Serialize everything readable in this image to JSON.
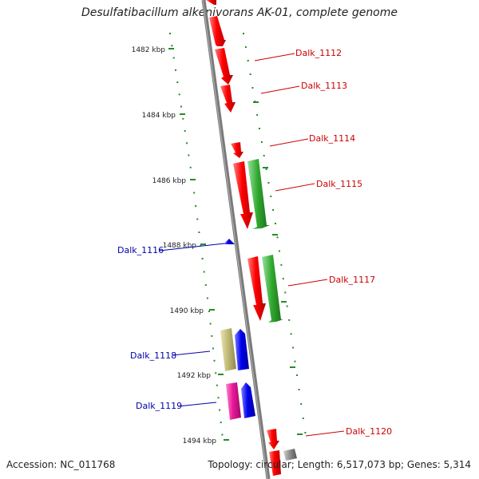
{
  "title": "Desulfatibacillum alkenivorans AK-01, complete genome",
  "footer": {
    "accession": "Accession: NC_011768",
    "summary": "Topology: circular; Length: 6,517,073 bp; Genes: 5,314"
  },
  "kbp_labels": [
    "1482 kbp",
    "1484 kbp",
    "1486 kbp",
    "1488 kbp",
    "1490 kbp",
    "1492 kbp",
    "1494 kbp"
  ],
  "genes": [
    {
      "name": "Dalk_1112",
      "color": "#cc0000"
    },
    {
      "name": "Dalk_1113",
      "color": "#cc0000"
    },
    {
      "name": "Dalk_1114",
      "color": "#cc0000"
    },
    {
      "name": "Dalk_1115",
      "color": "#cc0000"
    },
    {
      "name": "Dalk_1116",
      "color": "#0000aa"
    },
    {
      "name": "Dalk_1117",
      "color": "#cc0000"
    },
    {
      "name": "Dalk_1118",
      "color": "#0000aa"
    },
    {
      "name": "Dalk_1119",
      "color": "#0000aa"
    },
    {
      "name": "Dalk_1120",
      "color": "#cc0000"
    }
  ]
}
